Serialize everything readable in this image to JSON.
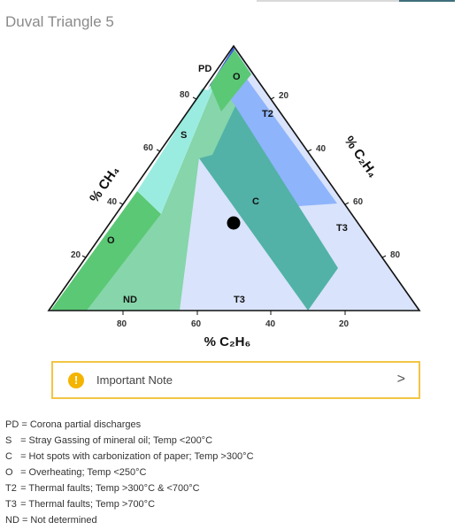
{
  "title": "Duval Triangle 5",
  "regions": {
    "pd": {
      "label": "PD",
      "color": "#3a5fd9"
    },
    "o_top": {
      "label": "O",
      "color": "#5bc875"
    },
    "t2": {
      "label": "T2",
      "color": "#8eb4fb"
    },
    "s": {
      "label": "S",
      "color": "#9bece0"
    },
    "c": {
      "label": "C",
      "color": "#52b2a7"
    },
    "o_left": {
      "label": "O",
      "color": "#5bc875"
    },
    "nd": {
      "label": "ND",
      "color": "#86d5ab"
    },
    "t3_bottom": {
      "label": "T3",
      "color": "#d9e3fb"
    },
    "t3_right": {
      "label": "T3",
      "color": "#d9e3fb"
    }
  },
  "axes": {
    "left_title": "% CH₄",
    "right_title": "% C₂H₄",
    "bottom_title": "% C₂H₆",
    "left_ticks": [
      "80",
      "60",
      "40",
      "20"
    ],
    "right_ticks": [
      "20",
      "40",
      "60",
      "80"
    ],
    "bottom_ticks": [
      "80",
      "60",
      "40",
      "20"
    ]
  },
  "marker": {
    "color": "#000000"
  },
  "note": {
    "label": "Important Note",
    "icon": "exclamation-icon",
    "chevron": ">"
  },
  "legend": [
    {
      "code": "PD",
      "text": "= Corona partial discharges"
    },
    {
      "code": "S",
      "text": "= Stray Gassing of mineral oil; Temp <200°C"
    },
    {
      "code": "C",
      "text": "= Hot spots with carbonization of paper; Temp >300°C"
    },
    {
      "code": "O",
      "text": "= Overheating; Temp <250°C"
    },
    {
      "code": "T2",
      "text": "= Thermal faults; Temp >300°C & <700°C"
    },
    {
      "code": "T3",
      "text": "= Thermal faults; Temp >700°C"
    },
    {
      "code": "ND",
      "text": "= Not determined"
    }
  ]
}
